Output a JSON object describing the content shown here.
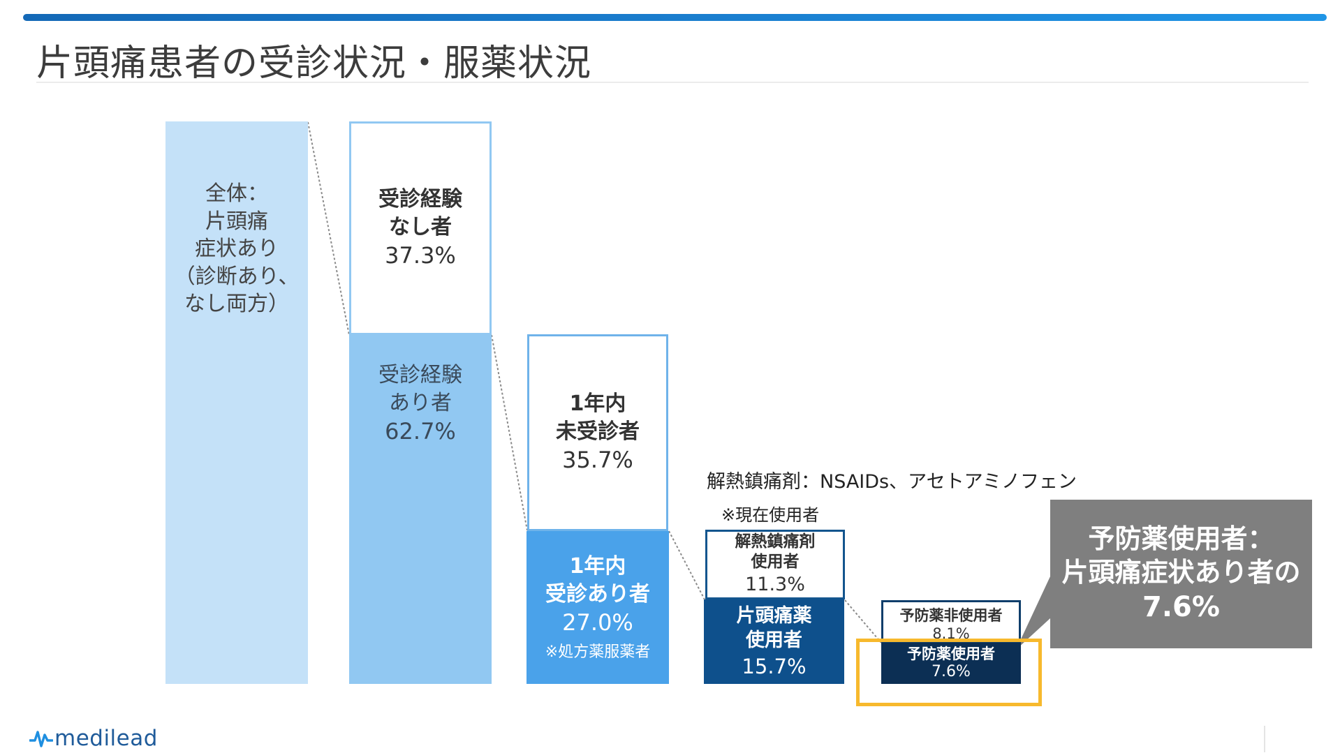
{
  "title": "片頭痛患者の受診状況・服薬状況",
  "columns": {
    "total": {
      "label": "全体：\n片頭痛\n症状あり\n（診断あり、\nなし両方）"
    },
    "visit_none": {
      "label": "受診経験\nなし者",
      "value": "37.3%"
    },
    "visit_yes": {
      "label": "受診経験\nあり者",
      "value": "62.7%"
    },
    "no_visit_1yr": {
      "label": "1年内\n未受診者",
      "value": "35.7%"
    },
    "visit_1yr": {
      "label": "1年内\n受診あり者",
      "value": "27.0%",
      "note": "※処方薬服薬者"
    },
    "analgesic": {
      "label": "解熱鎮痛剤\n使用者",
      "value": "11.3%"
    },
    "migraine_drug": {
      "label": "片頭痛薬\n使用者",
      "value": "15.7%"
    },
    "non_preventive": {
      "label": "予防薬非使用者",
      "value": "8.1%"
    },
    "preventive": {
      "label": "予防薬使用者",
      "value": "7.6%"
    }
  },
  "notes": {
    "nsaids": "解熱鎮痛剤：NSAIDs、アセトアミノフェン",
    "current_users": "※現在使用者"
  },
  "callout": {
    "line1": "予防薬使用者：",
    "line2": "片頭痛症状あり者の",
    "value": "7.6%"
  },
  "logo": {
    "text": "medilead"
  },
  "colors": {
    "accent_bar": "#1a7fd0",
    "total": "#c4e1f8",
    "visit_yes": "#91c8f2",
    "visit_1yr": "#4aa2ea",
    "migraine_drug": "#0e508c",
    "preventive": "#0c2f54",
    "highlight": "#f7b92d",
    "callout": "#7f7f7f"
  }
}
